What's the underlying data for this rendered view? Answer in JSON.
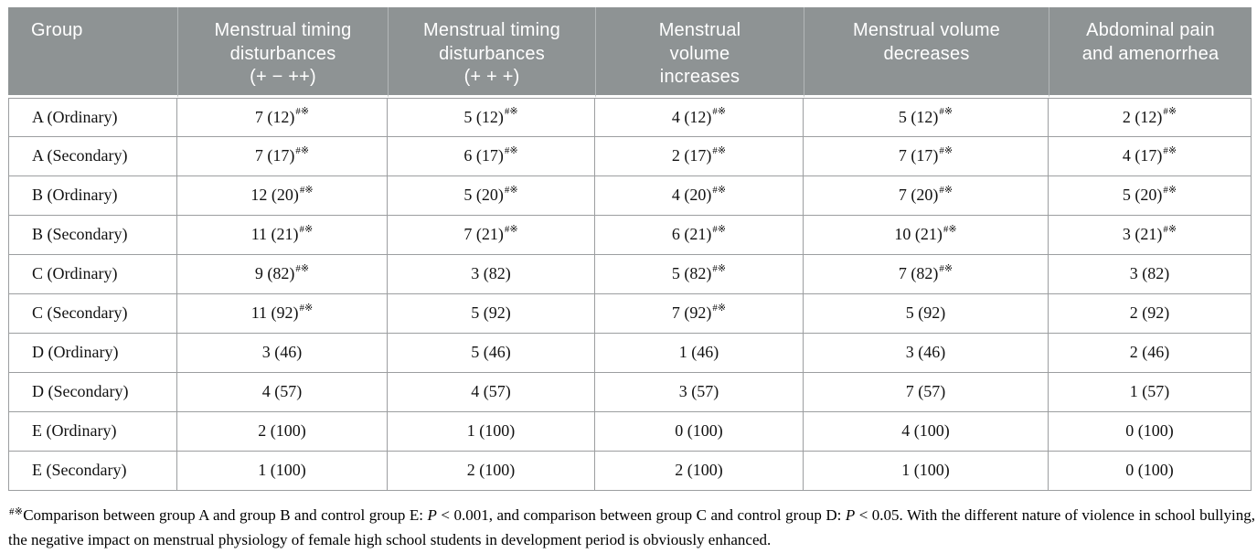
{
  "colors": {
    "header_background": "#8e9394",
    "header_text": "#ffffff",
    "grid_border": "#9c9ea0",
    "header_separator": "#b3b7b8",
    "body_text": "#111111"
  },
  "table": {
    "columns": [
      {
        "label": "Group"
      },
      {
        "label": "Menstrual timing\ndisturbances\n(+ − ++)"
      },
      {
        "label": "Menstrual timing\ndisturbances\n(+ + +)"
      },
      {
        "label": "Menstrual\nvolume\nincreases"
      },
      {
        "label": "Menstrual volume\ndecreases"
      },
      {
        "label": "Abdominal pain\nand amenorrhea"
      }
    ],
    "significance_marker": "#※",
    "rows": [
      {
        "group": "A (Ordinary)",
        "cells": [
          {
            "text": "7 (12)",
            "sup": "#※"
          },
          {
            "text": "5 (12)",
            "sup": "#※"
          },
          {
            "text": "4 (12)",
            "sup": "#※"
          },
          {
            "text": "5 (12)",
            "sup": "#※"
          },
          {
            "text": "2 (12)",
            "sup": "#※"
          }
        ]
      },
      {
        "group": "A (Secondary)",
        "cells": [
          {
            "text": "7 (17)",
            "sup": "#※"
          },
          {
            "text": "6 (17)",
            "sup": "#※"
          },
          {
            "text": "2 (17)",
            "sup": "#※"
          },
          {
            "text": "7 (17)",
            "sup": "#※"
          },
          {
            "text": "4 (17)",
            "sup": "#※"
          }
        ]
      },
      {
        "group": "B (Ordinary)",
        "cells": [
          {
            "text": "12 (20)",
            "sup": "#※"
          },
          {
            "text": "5 (20)",
            "sup": "#※"
          },
          {
            "text": "4 (20)",
            "sup": "#※"
          },
          {
            "text": "7 (20)",
            "sup": "#※"
          },
          {
            "text": "5 (20)",
            "sup": "#※"
          }
        ]
      },
      {
        "group": "B (Secondary)",
        "cells": [
          {
            "text": "11 (21)",
            "sup": "#※"
          },
          {
            "text": "7 (21)",
            "sup": "#※"
          },
          {
            "text": "6 (21)",
            "sup": "#※"
          },
          {
            "text": "10 (21)",
            "sup": "#※"
          },
          {
            "text": "3 (21)",
            "sup": "#※"
          }
        ]
      },
      {
        "group": "C (Ordinary)",
        "cells": [
          {
            "text": "9 (82)",
            "sup": "#※"
          },
          {
            "text": "3 (82)",
            "sup": ""
          },
          {
            "text": "5 (82)",
            "sup": "#※"
          },
          {
            "text": "7 (82)",
            "sup": "#※"
          },
          {
            "text": "3 (82)",
            "sup": ""
          }
        ]
      },
      {
        "group": "C (Secondary)",
        "cells": [
          {
            "text": "11 (92)",
            "sup": "#※"
          },
          {
            "text": "5 (92)",
            "sup": ""
          },
          {
            "text": "7 (92)",
            "sup": "#※"
          },
          {
            "text": "5 (92)",
            "sup": ""
          },
          {
            "text": "2 (92)",
            "sup": ""
          }
        ]
      },
      {
        "group": "D (Ordinary)",
        "cells": [
          {
            "text": "3 (46)",
            "sup": ""
          },
          {
            "text": "5 (46)",
            "sup": ""
          },
          {
            "text": "1 (46)",
            "sup": ""
          },
          {
            "text": "3 (46)",
            "sup": ""
          },
          {
            "text": "2 (46)",
            "sup": ""
          }
        ]
      },
      {
        "group": "D (Secondary)",
        "cells": [
          {
            "text": "4 (57)",
            "sup": ""
          },
          {
            "text": "4 (57)",
            "sup": ""
          },
          {
            "text": "3 (57)",
            "sup": ""
          },
          {
            "text": "7 (57)",
            "sup": ""
          },
          {
            "text": "1 (57)",
            "sup": ""
          }
        ]
      },
      {
        "group": "E (Ordinary)",
        "cells": [
          {
            "text": "2 (100)",
            "sup": ""
          },
          {
            "text": "1 (100)",
            "sup": ""
          },
          {
            "text": "0 (100)",
            "sup": ""
          },
          {
            "text": "4 (100)",
            "sup": ""
          },
          {
            "text": "0 (100)",
            "sup": ""
          }
        ]
      },
      {
        "group": "E (Secondary)",
        "cells": [
          {
            "text": "1 (100)",
            "sup": ""
          },
          {
            "text": "2 (100)",
            "sup": ""
          },
          {
            "text": "2 (100)",
            "sup": ""
          },
          {
            "text": "1 (100)",
            "sup": ""
          },
          {
            "text": "0 (100)",
            "sup": ""
          }
        ]
      }
    ]
  },
  "footnote": {
    "sup": "#※",
    "parts": [
      {
        "text": "Comparison between group A and group B and control group E: ",
        "italic": false
      },
      {
        "text": "P",
        "italic": true
      },
      {
        "text": " < 0.001, and comparison between group C and control group D: ",
        "italic": false
      },
      {
        "text": "P",
        "italic": true
      },
      {
        "text": " < 0.05. With the different nature of violence in school bullying, the negative impact on menstrual physiology of female high school students in development period is obviously enhanced.",
        "italic": false
      }
    ]
  }
}
